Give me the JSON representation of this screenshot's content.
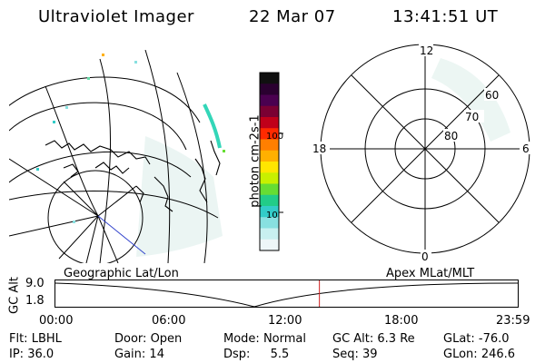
{
  "header": {
    "instrument": "Ultraviolet Imager",
    "date": "22 Mar 07",
    "time": "13:41:51 UT"
  },
  "colorbar": {
    "label": "photon cm-2s-1",
    "ticks": [
      "100",
      "10"
    ],
    "colors": [
      "#101010",
      "#2a0030",
      "#4a0050",
      "#7a0033",
      "#c0001a",
      "#ff2a00",
      "#ff7f00",
      "#ffb000",
      "#ffe600",
      "#c8f000",
      "#66dd33",
      "#22cc88",
      "#33ccc8",
      "#88e0e0",
      "#c8f0f0",
      "#eef6f8"
    ]
  },
  "polar_plot": {
    "hour_labels": {
      "top": "12",
      "left": "18",
      "right": "6",
      "bottom": "0"
    },
    "lat_labels": [
      "60",
      "70",
      "80"
    ]
  },
  "altitude_strip": {
    "left_label": "Geographic Lat/Lon",
    "right_label": "Apex MLat/MLT",
    "y_axis_label": "GC Alt",
    "y_ticks": [
      "9.0",
      "1.8"
    ],
    "x_ticks": [
      "00:00",
      "06:00",
      "12:00",
      "18:00",
      "23:59"
    ],
    "marker_time_fraction": 0.571
  },
  "status": {
    "row1": [
      {
        "label": "Flt:",
        "value": "LBHL"
      },
      {
        "label": "Door:",
        "value": "Open"
      },
      {
        "label": "Mode:",
        "value": "Normal"
      },
      {
        "label": "GC Alt:",
        "value": "6.3 Re"
      },
      {
        "label": "GLat:",
        "value": "-76.0"
      }
    ],
    "row2": [
      {
        "label": "IP:",
        "value": "36.0"
      },
      {
        "label": "Gain:",
        "value": "14"
      },
      {
        "label": "Dsp:",
        "value": "5.5"
      },
      {
        "label": "Seq:",
        "value": "39"
      },
      {
        "label": "GLon:",
        "value": "246.6"
      }
    ]
  }
}
